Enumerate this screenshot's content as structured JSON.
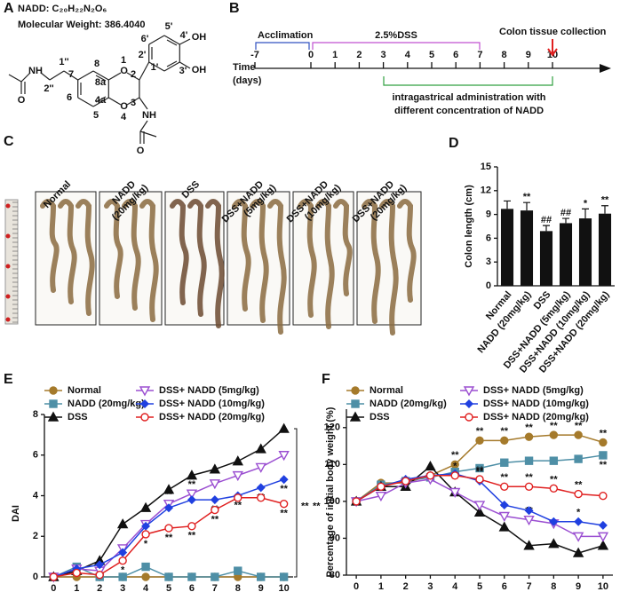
{
  "panel_labels": [
    "A",
    "B",
    "C",
    "D",
    "E",
    "F"
  ],
  "compound": {
    "name_line": "NADD: C₂₀H₂₂N₂O₆",
    "weight_line": "Molecular Weight: 386.4040",
    "atom_labels": [
      "OH",
      "OH",
      "O",
      "O",
      "NH",
      "O",
      "NH",
      "O"
    ],
    "position_labels": [
      "1",
      "2",
      "3",
      "4",
      "4a",
      "5",
      "6",
      "7",
      "8",
      "8a",
      "1'",
      "2'",
      "3'",
      "4'",
      "5'",
      "6'",
      "1''",
      "2''"
    ]
  },
  "timeline": {
    "time_label": [
      "Time",
      "(days)"
    ],
    "days": [
      -7,
      0,
      1,
      2,
      3,
      4,
      5,
      6,
      7,
      8,
      9,
      10
    ],
    "acclimation": "Acclimation",
    "dss": "2.5%DSS",
    "collection": "Colon tissue collection",
    "administration": [
      "intragastrical administration with",
      "different concentration of NADD"
    ]
  },
  "photo": {
    "groups": [
      [
        "Normal"
      ],
      [
        "NADD",
        "(20mg/kg)"
      ],
      [
        "DSS"
      ],
      [
        "DSS+NADD",
        "(5mg/kg)"
      ],
      [
        "DSS+NADD",
        "(10mg/kg)"
      ],
      [
        "DSS+NADD",
        "(20mg/kg)"
      ]
    ]
  },
  "chart_data": [
    {
      "type": "bar",
      "y_label": "Colon length (cm)",
      "categories": [
        "Normal",
        "NADD (20mg/kg)",
        "DSS",
        "DSS+NADD (5mg/kg)",
        "DSS+NADD (10mg/kg)",
        "DSS+NADD (20mg/kg)"
      ],
      "values": [
        9.7,
        9.5,
        6.9,
        7.9,
        8.5,
        9.1
      ],
      "errors": [
        1.0,
        1.0,
        0.7,
        0.6,
        1.2,
        1.0
      ],
      "significance": [
        null,
        "**",
        "##",
        "##",
        "*",
        "**"
      ],
      "color": "#111111",
      "ylim": [
        0,
        15
      ],
      "yticks": [
        0,
        3,
        6,
        9,
        12,
        15
      ]
    },
    {
      "type": "line",
      "x_label": "Days",
      "y_label": "DAI",
      "x": [
        0,
        1,
        2,
        3,
        4,
        5,
        6,
        7,
        8,
        9,
        10
      ],
      "xlim": [
        -0.4,
        10.4
      ],
      "xticks": [
        0,
        1,
        2,
        3,
        4,
        5,
        6,
        7,
        8,
        9,
        10
      ],
      "ylim": [
        0,
        8
      ],
      "yticks": [
        0,
        2,
        4,
        6,
        8
      ],
      "bracket_labels": [
        "**",
        "**"
      ],
      "series": [
        {
          "name": "Normal",
          "color": "#a57a2b",
          "marker": "circle",
          "values": [
            0,
            0,
            0,
            0,
            0,
            0,
            0,
            0,
            0,
            0,
            0
          ]
        },
        {
          "name": "NADD (20mg/kg)",
          "color": "#4e8fa6",
          "marker": "square",
          "values": [
            0,
            0.5,
            0,
            0,
            0.5,
            0,
            0,
            0,
            0.3,
            0,
            0
          ]
        },
        {
          "name": "DSS",
          "color": "#111111",
          "marker": "triangle",
          "values": [
            0,
            0.3,
            0.8,
            2.6,
            3.4,
            4.3,
            5.0,
            5.3,
            5.7,
            6.3,
            7.3
          ]
        },
        {
          "name": "DSS+ NADD (5mg/kg)",
          "color": "#9b4fd1",
          "marker": "triangle-open-down",
          "values": [
            0,
            0.4,
            0.3,
            1.4,
            2.6,
            3.6,
            4.1,
            4.6,
            5.0,
            5.4,
            6.0
          ],
          "significance": [
            null,
            null,
            null,
            null,
            null,
            "**",
            "**",
            null,
            null,
            null,
            null
          ],
          "significance_side": "above"
        },
        {
          "name": "DSS+ NADD (10mg/kg)",
          "color": "#2040e0",
          "marker": "diamond",
          "values": [
            0,
            0.4,
            0.6,
            1.2,
            2.5,
            3.4,
            3.8,
            3.8,
            4.0,
            4.4,
            4.8
          ],
          "significance": [
            null,
            null,
            null,
            null,
            null,
            null,
            null,
            "**",
            "**",
            "**",
            "**"
          ],
          "significance_side": "below"
        },
        {
          "name": "DSS+ NADD (20mg/kg)",
          "color": "#e02020",
          "marker": "circle-open",
          "values": [
            0,
            0.2,
            0.1,
            0.8,
            2.1,
            2.4,
            2.5,
            3.3,
            3.9,
            3.9,
            3.6
          ],
          "significance": [
            null,
            null,
            null,
            "*",
            "*",
            "**",
            "**",
            "**",
            null,
            null,
            "**"
          ],
          "significance_side": "below"
        }
      ]
    },
    {
      "type": "line",
      "x_label": "Days",
      "y_label": "Percentage of initial body weight (%)",
      "x": [
        0,
        1,
        2,
        3,
        4,
        5,
        6,
        7,
        8,
        9,
        10
      ],
      "xlim": [
        -0.4,
        10.4
      ],
      "xticks": [
        0,
        1,
        2,
        3,
        4,
        5,
        6,
        7,
        8,
        9,
        10
      ],
      "ylim": [
        80,
        125
      ],
      "yticks": [
        80,
        90,
        100,
        110,
        120
      ],
      "series": [
        {
          "name": "Normal",
          "color": "#a57a2b",
          "marker": "circle",
          "values": [
            100,
            105,
            105,
            107,
            110,
            116.5,
            116.5,
            117.5,
            118,
            118,
            116
          ],
          "significance": [
            null,
            null,
            null,
            null,
            "**",
            "**",
            "**",
            "**",
            "**",
            "**",
            "**"
          ],
          "significance_side": "above"
        },
        {
          "name": "NADD (20mg/kg)",
          "color": "#4e8fa6",
          "marker": "square",
          "values": [
            100,
            104.5,
            105.5,
            106.5,
            108,
            109,
            110.5,
            111,
            111,
            111.5,
            112.5
          ],
          "significance": [
            null,
            null,
            null,
            null,
            null,
            null,
            null,
            null,
            null,
            null,
            "**"
          ],
          "significance_side": "below"
        },
        {
          "name": "DSS",
          "color": "#111111",
          "marker": "triangle",
          "values": [
            100,
            104,
            104,
            109.5,
            102.5,
            97,
            93,
            88,
            88.5,
            86,
            88
          ]
        },
        {
          "name": "DSS+ NADD (5mg/kg)",
          "color": "#9b4fd1",
          "marker": "triangle-open-down",
          "values": [
            100,
            101.5,
            105,
            106,
            102.5,
            99,
            96,
            95,
            94,
            90.5,
            90.5
          ],
          "significance": [
            null,
            null,
            null,
            null,
            null,
            null,
            "**",
            "**",
            null,
            null,
            null
          ],
          "significance_side": "above"
        },
        {
          "name": "DSS+ NADD (10mg/kg)",
          "color": "#2040e0",
          "marker": "diamond",
          "values": [
            100,
            104,
            106,
            107,
            107.5,
            105.5,
            99,
            97.5,
            94.5,
            94.5,
            93.5
          ],
          "significance": [
            null,
            null,
            null,
            null,
            null,
            "**",
            null,
            null,
            null,
            "*",
            null
          ],
          "significance_side": "above"
        },
        {
          "name": "DSS+ NADD (20mg/kg)",
          "color": "#e02020",
          "marker": "circle-open",
          "values": [
            100,
            104,
            105.5,
            107,
            107,
            106,
            104,
            104,
            103.5,
            102,
            101.5
          ],
          "significance": [
            null,
            null,
            null,
            null,
            "*",
            "**",
            "**",
            "**",
            "**",
            "**",
            null
          ],
          "significance_side": "above"
        }
      ]
    }
  ]
}
